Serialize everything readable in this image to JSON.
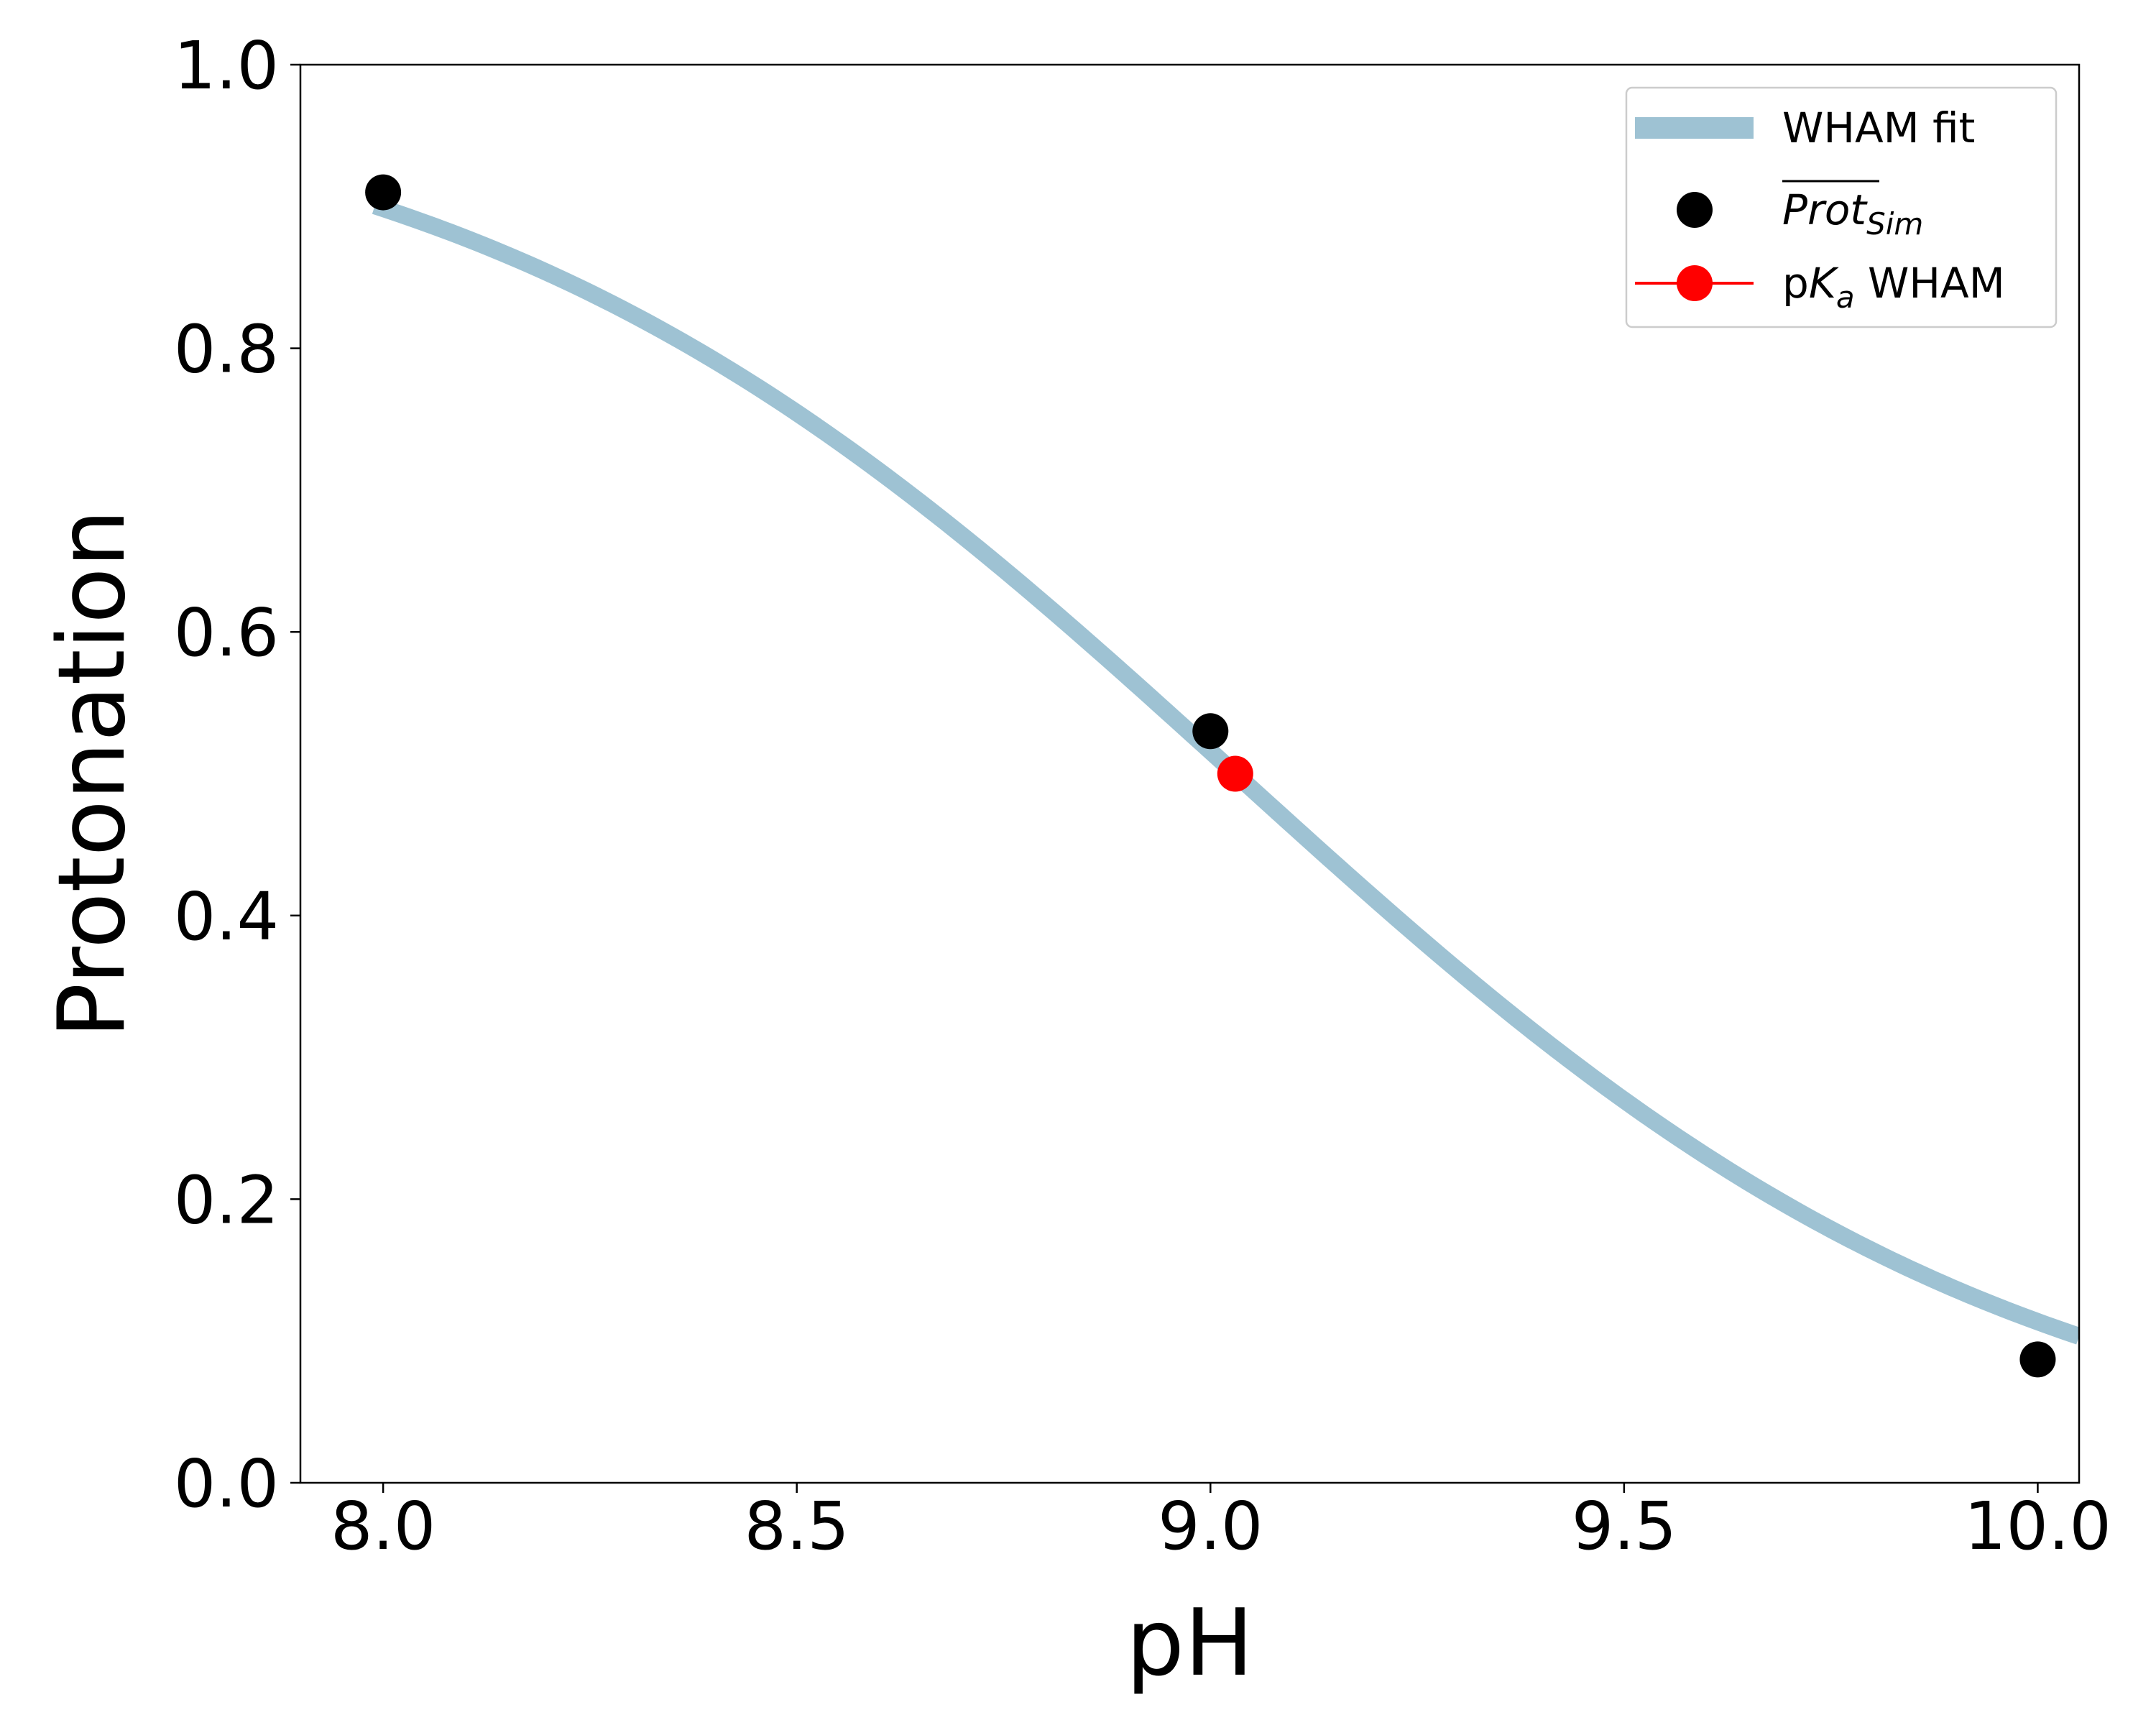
{
  "chart_data": {
    "type": "line",
    "title": "",
    "xlabel": "pH",
    "ylabel": "Protonation",
    "xlim": [
      7.9,
      10.05
    ],
    "ylim": [
      0.0,
      1.0
    ],
    "xticks": [
      8.0,
      8.5,
      9.0,
      9.5,
      10.0
    ],
    "xtick_labels": [
      "8.0",
      "8.5",
      "9.0",
      "9.5",
      "10.0"
    ],
    "yticks": [
      0.0,
      0.2,
      0.4,
      0.6,
      0.8,
      1.0
    ],
    "ytick_labels": [
      "0.0",
      "0.2",
      "0.4",
      "0.6",
      "0.8",
      "1.0"
    ],
    "grid": false,
    "legend_position": "top-right",
    "series": [
      {
        "name": "WHAM fit",
        "kind": "line",
        "color": "#9ec2d3",
        "x": [
          7.99,
          8.1,
          8.2,
          8.3,
          8.4,
          8.5,
          8.6,
          8.7,
          8.8,
          8.9,
          9.0,
          9.1,
          9.2,
          9.3,
          9.4,
          9.5,
          9.6,
          9.7,
          9.8,
          9.9,
          10.05
        ],
        "y": [
          0.921,
          0.888,
          0.851,
          0.81,
          0.766,
          0.718,
          0.667,
          0.614,
          0.558,
          0.501,
          0.531,
          0.486,
          0.432,
          0.378,
          0.326,
          0.277,
          0.233,
          0.193,
          0.158,
          0.128,
          0.09
        ]
      },
      {
        "name": "Prot",
        "name_subscript": "Sim",
        "kind": "scatter",
        "color": "#000000",
        "x": [
          8.0,
          9.0,
          10.0
        ],
        "y": [
          0.91,
          0.53,
          0.087
        ]
      },
      {
        "name": "p",
        "name_italic": "K",
        "name_subscript": "a",
        "name_suffix": " WHAM",
        "kind": "scatter",
        "color": "#ff0000",
        "x": [
          9.03
        ],
        "y": [
          0.5
        ]
      }
    ]
  }
}
